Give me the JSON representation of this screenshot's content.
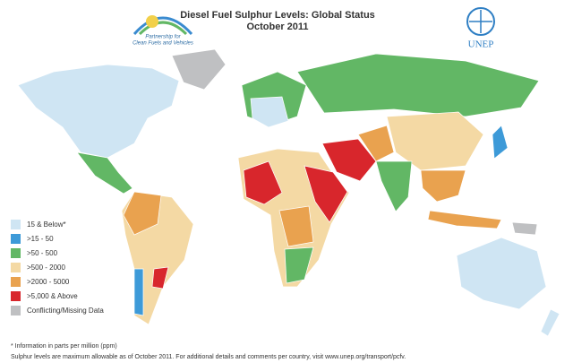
{
  "header": {
    "title": "Diesel Fuel Sulphur Levels: Global Status",
    "subtitle": "October 2011"
  },
  "logos": {
    "partnership": [
      "Partnership for",
      "Clean Fuels and Vehicles"
    ],
    "unep": "UNEP"
  },
  "legend": [
    {
      "label": "15 & Below*",
      "color": "#cfe5f3"
    },
    {
      "label": ">15 - 50",
      "color": "#3d9ad8"
    },
    {
      "label": ">50 - 500",
      "color": "#62b765"
    },
    {
      "label": ">500 - 2000",
      "color": "#f4d9a4"
    },
    {
      "label": ">2000 - 5000",
      "color": "#e9a24f"
    },
    {
      "label": ">5,000 & Above",
      "color": "#d8262c"
    },
    {
      "label": "Conflicting/Missing Data",
      "color": "#bfc0c2"
    }
  ],
  "footnotes": [
    "* Information in parts per million (ppm)",
    "Sulphur levels are maximum allowable as of  October 2011. For additional details and comments per country, visit www.unep.org/transport/pcfv."
  ]
}
